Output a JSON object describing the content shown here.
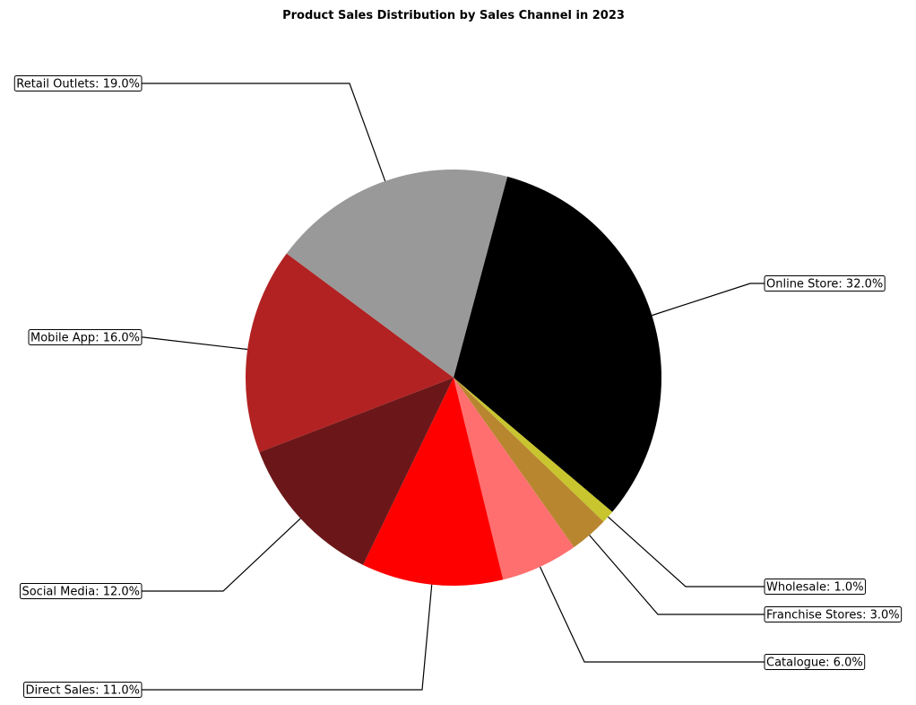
{
  "chart_data": {
    "type": "pie",
    "title": "Product Sales Distribution by Sales Channel in 2023",
    "start_angle_deg": 75,
    "direction": "clockwise",
    "slices": [
      {
        "label": "Online Store",
        "value": 32.0,
        "display": "Online Store: 32.0%",
        "color": "#000000",
        "label_side": "right"
      },
      {
        "label": "Wholesale",
        "value": 1.0,
        "display": "Wholesale: 1.0%",
        "color": "#c8c52f",
        "label_side": "right"
      },
      {
        "label": "Franchise Stores",
        "value": 3.0,
        "display": "Franchise Stores: 3.0%",
        "color": "#b8862f",
        "label_side": "right"
      },
      {
        "label": "Catalogue",
        "value": 6.0,
        "display": "Catalogue: 6.0%",
        "color": "#ff6f6f",
        "label_side": "right"
      },
      {
        "label": "Direct Sales",
        "value": 11.0,
        "display": "Direct Sales: 11.0%",
        "color": "#ff0000",
        "label_side": "left"
      },
      {
        "label": "Social Media",
        "value": 12.0,
        "display": "Social Media: 12.0%",
        "color": "#6b1719",
        "label_side": "left"
      },
      {
        "label": "Mobile App",
        "value": 16.0,
        "display": "Mobile App: 16.0%",
        "color": "#b22222",
        "label_side": "left"
      },
      {
        "label": "Retail Outlets",
        "value": 19.0,
        "display": "Retail Outlets: 19.0%",
        "color": "#999999",
        "label_side": "left"
      }
    ]
  }
}
